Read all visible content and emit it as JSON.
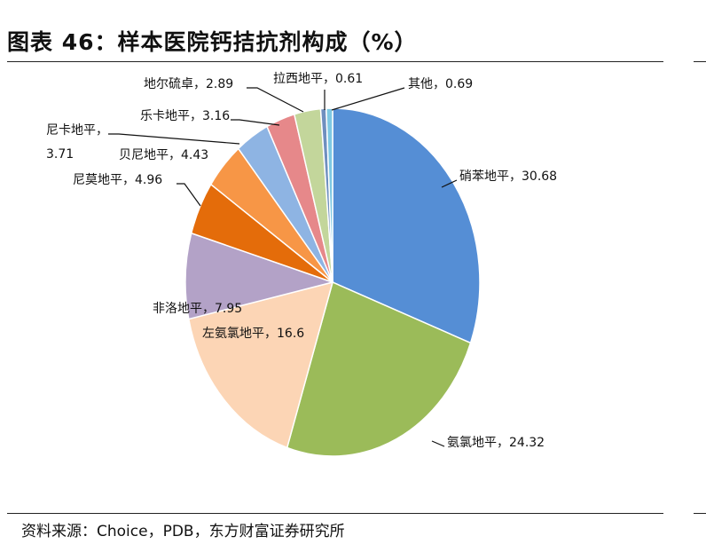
{
  "title": "图表 46：样本医院钙拮抗剂构成（%）",
  "source": "资料来源：Choice，PDB，东方财富证券研究所",
  "chart_data": {
    "type": "pie",
    "title": "图表 46：样本医院钙拮抗剂构成（%）",
    "slices": [
      {
        "name": "硝苯地平",
        "value": 30.68,
        "color": "#558ed5",
        "label_text": "硝苯地平，30.68"
      },
      {
        "name": "氨氯地平",
        "value": 24.32,
        "color": "#9bbb59",
        "label_text": "氨氯地平，24.32"
      },
      {
        "name": "左氨氯地平",
        "value": 16.6,
        "color": "#fcd5b5",
        "label_text": "左氨氯地平，16.6"
      },
      {
        "name": "非洛地平",
        "value": 7.95,
        "color": "#b3a2c7",
        "label_text": "非洛地平，7.95"
      },
      {
        "name": "尼莫地平",
        "value": 4.96,
        "color": "#e46c0a",
        "label_text": "尼莫地平，4.96"
      },
      {
        "name": "贝尼地平",
        "value": 4.43,
        "color": "#f79646",
        "label_text": "贝尼地平，4.43"
      },
      {
        "name": "尼卡地平",
        "value": 3.71,
        "color": "#8eb4e3",
        "label_line1": "尼卡地平，",
        "label_line2": "3.71"
      },
      {
        "name": "乐卡地平",
        "value": 3.16,
        "color": "#e6888a",
        "label_text": "乐卡地平，3.16"
      },
      {
        "name": "地尔硫卓",
        "value": 2.89,
        "color": "#c3d69b",
        "label_text": "地尔硫卓，2.89"
      },
      {
        "name": "拉西地平",
        "value": 0.61,
        "color": "#6f8fbf",
        "label_text": "拉西地平，0.61"
      },
      {
        "name": "其他",
        "value": 0.69,
        "color": "#7ec8e3",
        "label_text": "其他，0.69"
      }
    ]
  }
}
